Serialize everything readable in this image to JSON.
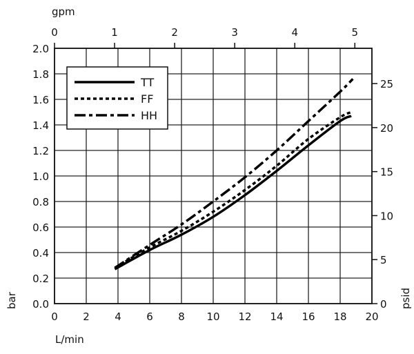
{
  "chart_data": {
    "type": "line",
    "xlabel": "L/min",
    "ylabel": "bar",
    "x2label": "gpm",
    "y2label": "psid",
    "xlim": [
      0,
      20
    ],
    "ylim": [
      0,
      2.0
    ],
    "x2lim_gpm_ticks": [
      0,
      1,
      2,
      3,
      4,
      5
    ],
    "y2_ticks_psid": [
      0,
      5,
      10,
      15,
      20,
      25
    ],
    "x_ticks": [
      0,
      2,
      4,
      6,
      8,
      10,
      12,
      14,
      16,
      18,
      20
    ],
    "y_ticks": [
      "0.0",
      "0.2",
      "0.4",
      "0.6",
      "0.8",
      "1.0",
      "1.2",
      "1.4",
      "1.6",
      "1.8",
      "2.0"
    ],
    "grid": true,
    "legend_position": "top-left",
    "series": [
      {
        "name": "TT",
        "style": "solid",
        "x": [
          3.8,
          6,
          8,
          10,
          12,
          14,
          16,
          18,
          18.7
        ],
        "y": [
          0.27,
          0.42,
          0.54,
          0.68,
          0.85,
          1.04,
          1.24,
          1.43,
          1.47
        ]
      },
      {
        "name": "FF",
        "style": "dotted",
        "x": [
          3.8,
          6,
          8,
          10,
          12,
          14,
          16,
          18,
          18.7
        ],
        "y": [
          0.28,
          0.44,
          0.57,
          0.72,
          0.89,
          1.08,
          1.29,
          1.46,
          1.5
        ]
      },
      {
        "name": "HH",
        "style": "dash-dot",
        "x": [
          3.8,
          6,
          8,
          10,
          12,
          14,
          16,
          18,
          18.8
        ],
        "y": [
          0.28,
          0.46,
          0.62,
          0.8,
          0.99,
          1.2,
          1.43,
          1.66,
          1.76
        ]
      }
    ]
  }
}
